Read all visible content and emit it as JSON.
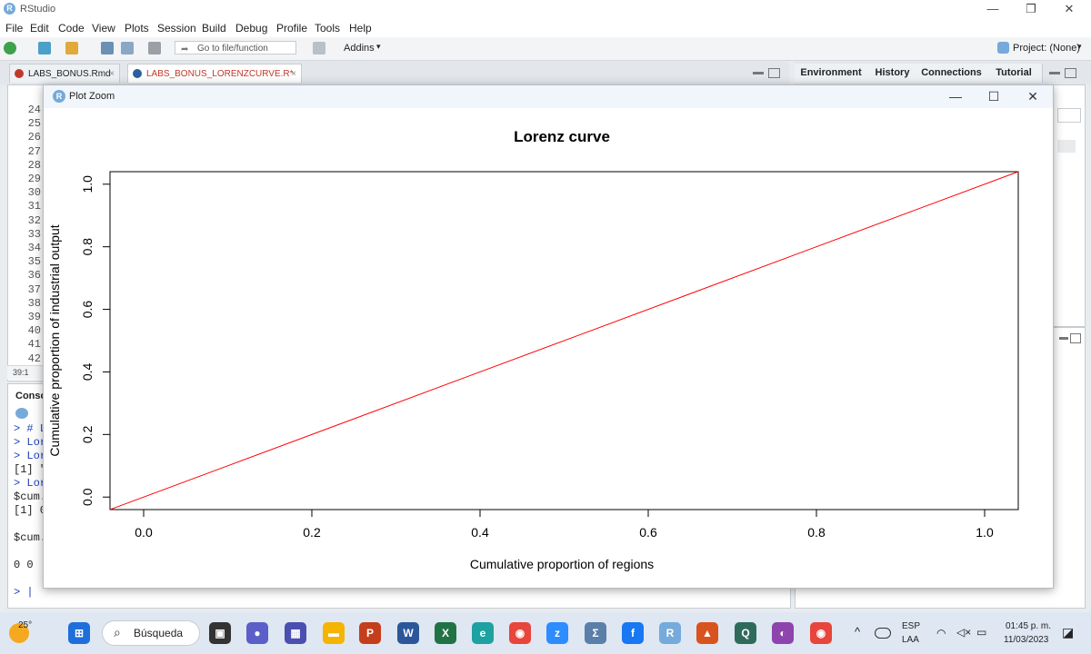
{
  "window": {
    "title": "RStudio"
  },
  "menu": [
    "File",
    "Edit",
    "Code",
    "View",
    "Plots",
    "Session",
    "Build",
    "Debug",
    "Profile",
    "Tools",
    "Help"
  ],
  "toolbar": {
    "goto_placeholder": "Go to file/function",
    "addins_label": "Addins",
    "project_label": "Project: (None)"
  },
  "editor_tabs": [
    {
      "label": "LABS_BONUS.Rmd",
      "color": "#c0392b"
    },
    {
      "label": "LABS_BONUS_LORENZCURVE.R*",
      "color": "#2c5f9e"
    }
  ],
  "env_tabs": [
    "Environment",
    "History",
    "Connections",
    "Tutorial"
  ],
  "editor": {
    "line_numbers": [
      "24",
      "25",
      "26",
      "27",
      "28",
      "29",
      "30",
      "31",
      "32",
      "33",
      "34",
      "35",
      "36",
      "37",
      "38",
      "39",
      "40",
      "41",
      "42"
    ],
    "cursor_pos": "39:1"
  },
  "console": {
    "title": "Conso",
    "lines": [
      {
        "text": "> # L",
        "color": "#1a3fb8"
      },
      {
        "text": "> Lor",
        "color": "#1a3fb8"
      },
      {
        "text": "> Lor",
        "color": "#1a3fb8"
      },
      {
        "text": "[1] \"",
        "color": "#222"
      },
      {
        "text": "> Lor",
        "color": "#1a3fb8"
      },
      {
        "text": "$cum.",
        "color": "#222"
      },
      {
        "text": "[1] 0",
        "color": "#222"
      },
      {
        "text": "",
        "color": "#222"
      },
      {
        "text": "$cum.",
        "color": "#222"
      },
      {
        "text": "",
        "color": "#222"
      },
      {
        "text": "  0 0",
        "color": "#222"
      },
      {
        "text": "",
        "color": "#222"
      },
      {
        "text": "> |",
        "color": "#1a3fb8"
      }
    ]
  },
  "zoom_window": {
    "title": "Plot Zoom"
  },
  "chart_data": {
    "type": "line",
    "title": "Lorenz curve",
    "xlabel": "Cumulative proportion of regions",
    "ylabel": "Cumulative proportion of industrial output",
    "xlim": [
      -0.04,
      1.04
    ],
    "ylim": [
      -0.04,
      1.04
    ],
    "x_ticks": [
      "0.0",
      "0.2",
      "0.4",
      "0.6",
      "0.8",
      "1.0"
    ],
    "y_ticks": [
      "0.0",
      "0.2",
      "0.4",
      "0.6",
      "0.8",
      "1.0"
    ],
    "series": [
      {
        "color": "#ff0000",
        "x": [
          -0.04,
          1.04
        ],
        "y": [
          -0.04,
          1.04
        ]
      }
    ],
    "grid": false,
    "legend": "none"
  },
  "taskbar": {
    "weather": "25°",
    "search_label": "Búsqueda",
    "lang_top": "ESP",
    "lang_bottom": "LAA",
    "time": "01:45 p. m.",
    "date": "11/03/2023",
    "apps": [
      {
        "name": "windows-icon",
        "color": "#1e6fd9",
        "glyph": "⊞"
      },
      {
        "name": "task-view-icon",
        "color": "#333333",
        "glyph": "▣"
      },
      {
        "name": "chat-icon",
        "color": "#5b5fc7",
        "glyph": "●"
      },
      {
        "name": "calculator-icon",
        "color": "#4a4fb0",
        "glyph": "▦"
      },
      {
        "name": "explorer-icon",
        "color": "#f4b400",
        "glyph": "▬"
      },
      {
        "name": "powerpoint-icon",
        "color": "#c43e1c",
        "glyph": "P"
      },
      {
        "name": "word-icon",
        "color": "#2b579a",
        "glyph": "W"
      },
      {
        "name": "excel-icon",
        "color": "#217346",
        "glyph": "X"
      },
      {
        "name": "edge-icon",
        "color": "#1da1a1",
        "glyph": "e"
      },
      {
        "name": "chrome-icon",
        "color": "#e8453c",
        "glyph": "◉"
      },
      {
        "name": "zoom-icon",
        "color": "#2d8cff",
        "glyph": "z"
      },
      {
        "name": "sigma-icon",
        "color": "#5a7fa8",
        "glyph": "Σ"
      },
      {
        "name": "facebook-icon",
        "color": "#1877f2",
        "glyph": "f"
      },
      {
        "name": "rstudio-icon",
        "color": "#75aadb",
        "glyph": "R"
      },
      {
        "name": "matlab-icon",
        "color": "#d9531e",
        "glyph": "▲"
      },
      {
        "name": "search-app-icon",
        "color": "#2f6b5a",
        "glyph": "Q"
      },
      {
        "name": "github-icon",
        "color": "#8e44ad",
        "glyph": "◐"
      },
      {
        "name": "chrome-profile-icon",
        "color": "#e8453c",
        "glyph": "◉"
      }
    ]
  }
}
